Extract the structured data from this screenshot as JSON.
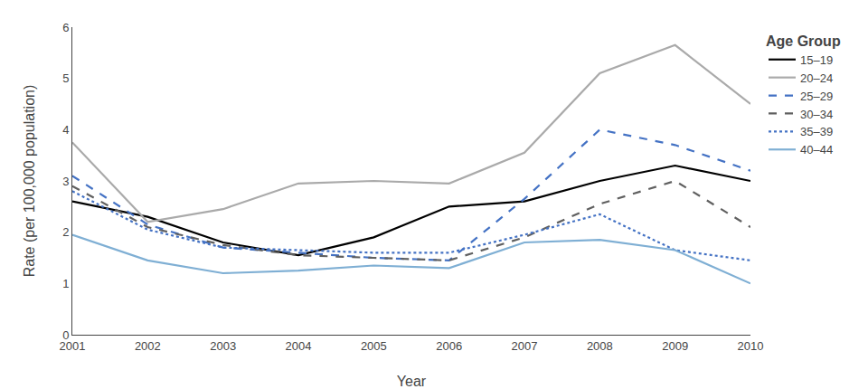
{
  "chart_data": {
    "type": "line",
    "x": [
      2001,
      2002,
      2003,
      2004,
      2005,
      2006,
      2007,
      2008,
      2009,
      2010
    ],
    "series": [
      {
        "name": "15–19",
        "color": "#000000",
        "line_style": "solid",
        "values": [
          2.6,
          2.3,
          1.8,
          1.55,
          1.9,
          2.5,
          2.6,
          3.0,
          3.3,
          3.0
        ]
      },
      {
        "name": "20–24",
        "color": "#aaaaaa",
        "line_style": "solid",
        "values": [
          3.75,
          2.2,
          2.45,
          2.95,
          3.0,
          2.95,
          3.55,
          5.1,
          5.65,
          4.5
        ]
      },
      {
        "name": "25–29",
        "color": "#4472c4",
        "line_style": "dashed",
        "values": [
          3.1,
          2.15,
          1.7,
          1.6,
          1.5,
          1.45,
          2.65,
          4.0,
          3.7,
          3.2
        ]
      },
      {
        "name": "30–34",
        "color": "#606060",
        "line_style": "dashed",
        "values": [
          2.9,
          2.1,
          1.75,
          1.55,
          1.5,
          1.45,
          1.9,
          2.55,
          3.0,
          2.1
        ]
      },
      {
        "name": "35–39",
        "color": "#4472c4",
        "line_style": "dotted",
        "values": [
          2.8,
          2.05,
          1.7,
          1.65,
          1.6,
          1.6,
          1.95,
          2.35,
          1.65,
          1.45
        ]
      },
      {
        "name": "40–44",
        "color": "#7fafd4",
        "line_style": "solid",
        "values": [
          1.95,
          1.45,
          1.2,
          1.25,
          1.35,
          1.3,
          1.8,
          1.85,
          1.65,
          1.0
        ]
      }
    ],
    "xlabel": "Year",
    "ylabel": "Rate (per 100,000 population)",
    "legend_title": "Age Group",
    "xlim": [
      2001,
      2010
    ],
    "xticks": [
      2001,
      2002,
      2003,
      2004,
      2005,
      2006,
      2007,
      2008,
      2009,
      2010
    ],
    "ylim": [
      0,
      6
    ],
    "yticks": [
      0,
      1,
      2,
      3,
      4,
      5,
      6
    ],
    "grid": false,
    "legend": "upper right"
  }
}
